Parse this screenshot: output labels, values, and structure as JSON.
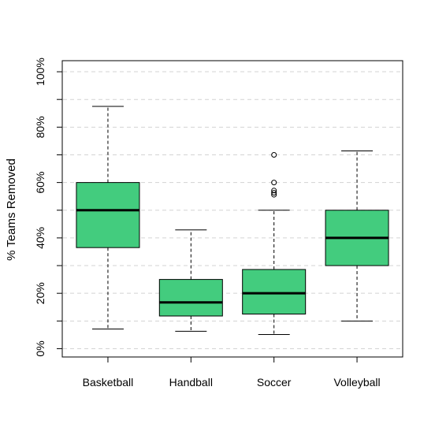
{
  "chart_data": {
    "type": "boxplot",
    "title": "",
    "xlabel": "",
    "ylabel": "% Teams Removed",
    "ylim": [
      -3,
      104
    ],
    "y_ticks": [
      0,
      20,
      40,
      60,
      80,
      100
    ],
    "y_tick_labels": [
      "0%",
      "20%",
      "40%",
      "60%",
      "80%",
      "100%"
    ],
    "minor_gridlines": [
      10,
      30,
      50,
      70,
      90
    ],
    "grid": "horizontal dashed",
    "box_color": "#43CC7E",
    "categories": [
      "Basketball",
      "Handball",
      "Soccer",
      "Volleyball"
    ],
    "boxes": [
      {
        "category": "Basketball",
        "min": 7.1,
        "q1": 36.5,
        "median": 50,
        "q3": 60,
        "max": 87.5,
        "outliers": []
      },
      {
        "category": "Handball",
        "min": 6.3,
        "q1": 11.8,
        "median": 16.7,
        "q3": 25,
        "max": 42.9,
        "outliers": []
      },
      {
        "category": "Soccer",
        "min": 5.1,
        "q1": 12.5,
        "median": 20,
        "q3": 28.6,
        "max": 50,
        "outliers": [
          55.6,
          56.3,
          57.1,
          60,
          70
        ]
      },
      {
        "category": "Volleyball",
        "min": 10,
        "q1": 30,
        "median": 40,
        "q3": 50,
        "max": 71.4,
        "outliers": []
      }
    ]
  }
}
